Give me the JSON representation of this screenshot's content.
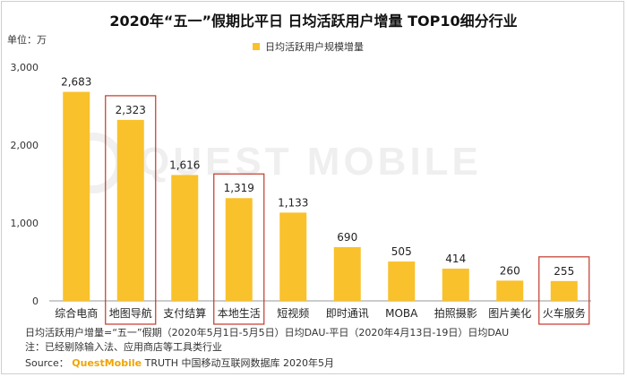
{
  "title": "2020年“五一”假期比平日 日均活跃用户增量 TOP10细分行业",
  "unit_label": "单位：万",
  "watermark_text": "QUEST MOBILE",
  "colors": {
    "bar": "#F9C12B",
    "highlight": "#C0392B",
    "axis": "#999999"
  },
  "chart_data": {
    "type": "bar",
    "title": "2020年“五一”假期比平日 日均活跃用户增量 TOP10细分行业",
    "categories": [
      "综合电商",
      "地图导航",
      "支付结算",
      "本地生活",
      "短视频",
      "即时通讯",
      "MOBA",
      "拍照摄影",
      "图片美化",
      "火车服务"
    ],
    "series": [
      {
        "name": "日均活跃用户规模增量",
        "values": [
          2683,
          2323,
          1616,
          1319,
          1133,
          690,
          505,
          414,
          260,
          255
        ]
      }
    ],
    "value_labels": [
      "2,683",
      "2,323",
      "1,616",
      "1,319",
      "1,133",
      "690",
      "505",
      "414",
      "260",
      "255"
    ],
    "highlighted": [
      false,
      true,
      false,
      true,
      false,
      false,
      false,
      false,
      false,
      true
    ],
    "ylim": [
      0,
      3000
    ],
    "yticks": [
      0,
      1000,
      2000,
      3000
    ],
    "ytick_labels": [
      "0",
      "1,000",
      "2,000",
      "3,000"
    ],
    "xlabel": "",
    "ylabel": "",
    "legend_position": "top"
  },
  "footer": {
    "line1": "日均活跃用户增量=“五一”假期（2020年5月1日-5月5日）日均DAU-平日（2020年4月13日-19日）日均DAU",
    "line2": "注：已经剔除输入法、应用商店等工具类行业",
    "source_prefix": "Source：",
    "source_brand": "QuestMobile",
    "source_rest": " TRUTH 中国移动互联网数据库 2020年5月"
  }
}
